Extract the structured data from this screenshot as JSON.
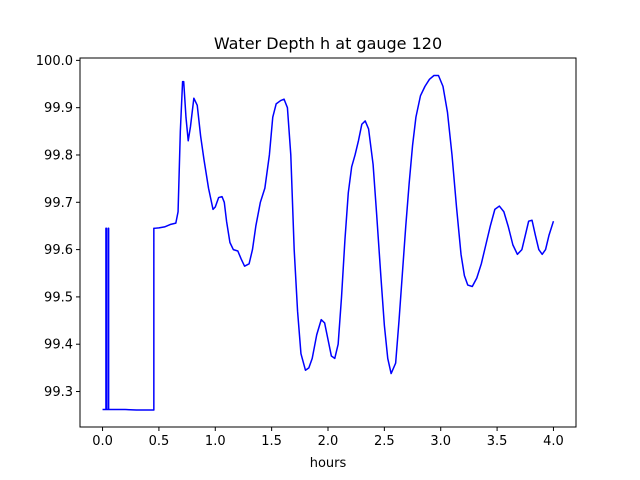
{
  "chart_data": {
    "type": "line",
    "title": "Water Depth h at gauge 120",
    "xlabel": "hours",
    "ylabel": "",
    "xlim": [
      -0.2,
      4.2
    ],
    "ylim": [
      99.225,
      100.005
    ],
    "xticks": [
      0.0,
      0.5,
      1.0,
      1.5,
      2.0,
      2.5,
      3.0,
      3.5,
      4.0
    ],
    "xtick_labels": [
      "0.0",
      "0.5",
      "1.0",
      "1.5",
      "2.0",
      "2.5",
      "3.0",
      "3.5",
      "4.0"
    ],
    "yticks": [
      99.3,
      99.4,
      99.5,
      99.6,
      99.7,
      99.8,
      99.9,
      100.0
    ],
    "ytick_labels": [
      "99.3",
      "99.4",
      "99.5",
      "99.6",
      "99.7",
      "99.8",
      "99.9",
      "100.0"
    ],
    "grid": false,
    "series": [
      {
        "color": "#0000ff",
        "x": [
          0.0,
          0.03,
          0.03,
          0.034,
          0.034,
          0.05,
          0.05,
          0.054,
          0.054,
          0.1,
          0.2,
          0.3,
          0.4,
          0.455,
          0.455,
          0.46,
          0.5,
          0.55,
          0.6,
          0.65,
          0.67,
          0.69,
          0.71,
          0.72,
          0.74,
          0.76,
          0.78,
          0.81,
          0.84,
          0.87,
          0.9,
          0.94,
          0.98,
          1.0,
          1.03,
          1.06,
          1.08,
          1.1,
          1.13,
          1.16,
          1.2,
          1.23,
          1.26,
          1.3,
          1.33,
          1.36,
          1.4,
          1.44,
          1.48,
          1.51,
          1.54,
          1.58,
          1.61,
          1.64,
          1.67,
          1.7,
          1.73,
          1.76,
          1.8,
          1.83,
          1.86,
          1.9,
          1.94,
          1.97,
          2.0,
          2.03,
          2.06,
          2.09,
          2.12,
          2.15,
          2.18,
          2.21,
          2.24,
          2.27,
          2.3,
          2.33,
          2.36,
          2.4,
          2.43,
          2.47,
          2.5,
          2.53,
          2.56,
          2.6,
          2.63,
          2.66,
          2.69,
          2.72,
          2.75,
          2.78,
          2.82,
          2.86,
          2.9,
          2.94,
          2.98,
          3.02,
          3.06,
          3.1,
          3.14,
          3.18,
          3.21,
          3.24,
          3.28,
          3.32,
          3.36,
          3.4,
          3.44,
          3.48,
          3.52,
          3.56,
          3.6,
          3.64,
          3.68,
          3.72,
          3.75,
          3.78,
          3.81,
          3.84,
          3.87,
          3.9,
          3.93,
          3.96,
          4.0
        ],
        "y": [
          99.262,
          99.262,
          99.645,
          99.645,
          99.262,
          99.262,
          99.645,
          99.645,
          99.262,
          99.262,
          99.262,
          99.261,
          99.261,
          99.261,
          99.645,
          99.645,
          99.646,
          99.648,
          99.653,
          99.656,
          99.68,
          99.85,
          99.955,
          99.955,
          99.88,
          99.83,
          99.86,
          99.92,
          99.905,
          99.84,
          99.79,
          99.73,
          99.685,
          99.69,
          99.71,
          99.712,
          99.7,
          99.66,
          99.615,
          99.6,
          99.597,
          99.58,
          99.565,
          99.57,
          99.6,
          99.65,
          99.7,
          99.73,
          99.8,
          99.88,
          99.908,
          99.915,
          99.918,
          99.9,
          99.8,
          99.6,
          99.47,
          99.38,
          99.345,
          99.35,
          99.37,
          99.42,
          99.452,
          99.445,
          99.41,
          99.375,
          99.37,
          99.4,
          99.5,
          99.62,
          99.72,
          99.775,
          99.8,
          99.83,
          99.865,
          99.872,
          99.855,
          99.78,
          99.68,
          99.54,
          99.44,
          99.37,
          99.338,
          99.36,
          99.45,
          99.55,
          99.65,
          99.74,
          99.82,
          99.88,
          99.925,
          99.945,
          99.96,
          99.968,
          99.968,
          99.945,
          99.89,
          99.8,
          99.69,
          99.59,
          99.545,
          99.525,
          99.522,
          99.54,
          99.57,
          99.61,
          99.65,
          99.685,
          99.692,
          99.68,
          99.648,
          99.61,
          99.59,
          99.6,
          99.63,
          99.66,
          99.662,
          99.63,
          99.6,
          99.59,
          99.6,
          99.63,
          99.66
        ]
      }
    ]
  }
}
